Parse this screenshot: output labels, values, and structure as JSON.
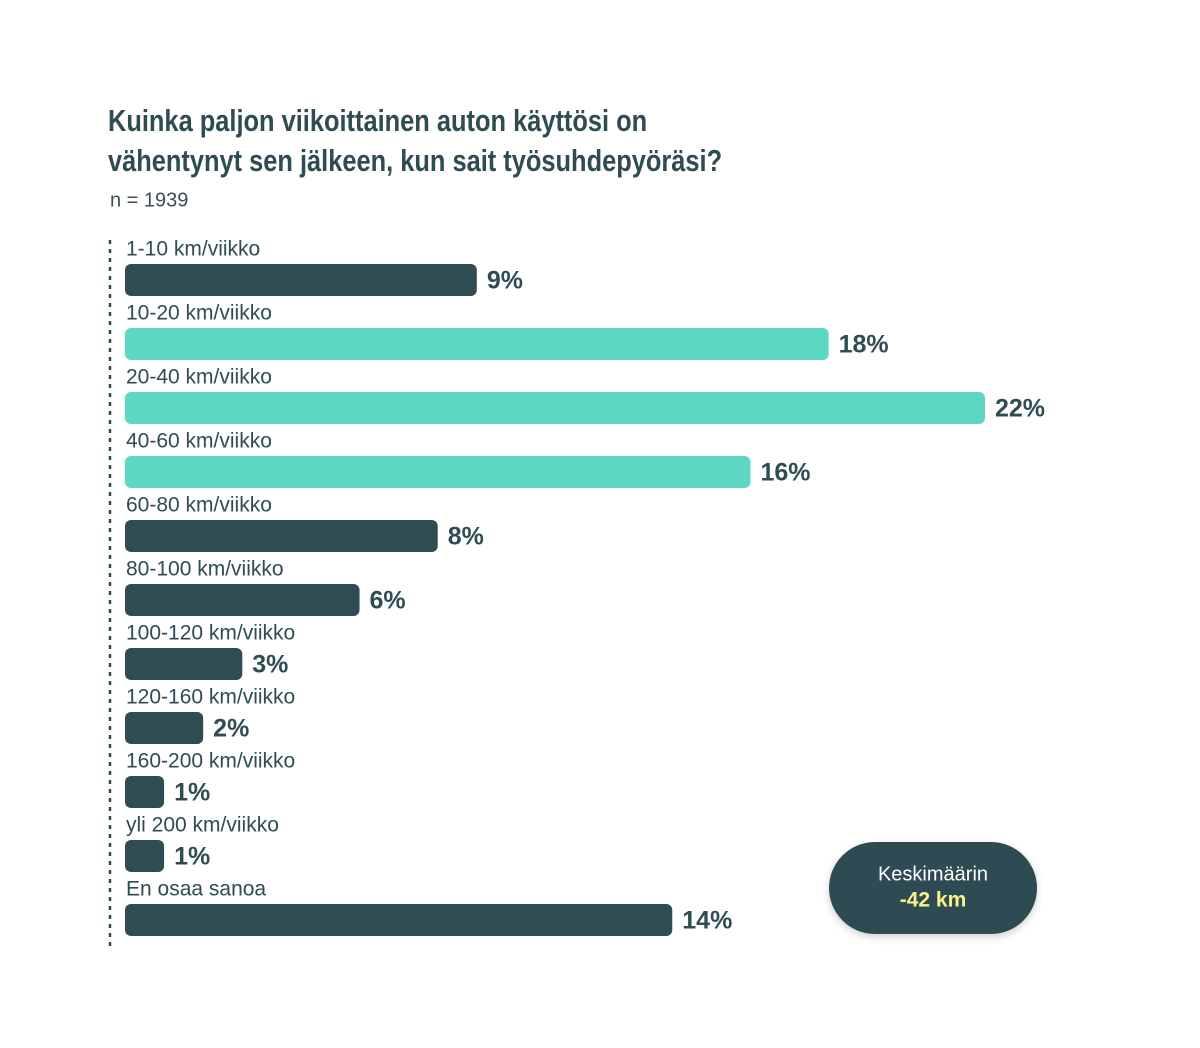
{
  "chart_data": {
    "type": "hbar",
    "title": [
      "Kuinka paljon viikoittainen auton käyttösi on",
      "vähentynyt sen jälkeen, kun sait työsuhdepyöräsi?"
    ],
    "subtitle": "n = 1939",
    "categories": [
      "1-10 km/viikko",
      "10-20 km/viikko",
      "20-40 km/viikko",
      "40-60 km/viikko",
      "60-80 km/viikko",
      "80-100 km/viikko",
      "100-120 km/viikko",
      "120-160 km/viikko",
      "160-200 km/viikko",
      "yli 200 km/viikko",
      "En osaa sanoa"
    ],
    "values": [
      9,
      18,
      22,
      16,
      8,
      6,
      3,
      2,
      1,
      1,
      14
    ],
    "value_labels": [
      "9%",
      "18%",
      "22%",
      "16%",
      "8%",
      "6%",
      "3%",
      "2%",
      "1%",
      "1%",
      "14%"
    ],
    "colors": [
      "#2f4c52",
      "#5dd6c4",
      "#5dd6c4",
      "#5dd6c4",
      "#2f4c52",
      "#2f4c52",
      "#2f4c52",
      "#2f4c52",
      "#2f4c52",
      "#2f4c52",
      "#2f4c52"
    ],
    "annotation": {
      "label": "Keskimäärin",
      "value": "-42 km"
    }
  }
}
